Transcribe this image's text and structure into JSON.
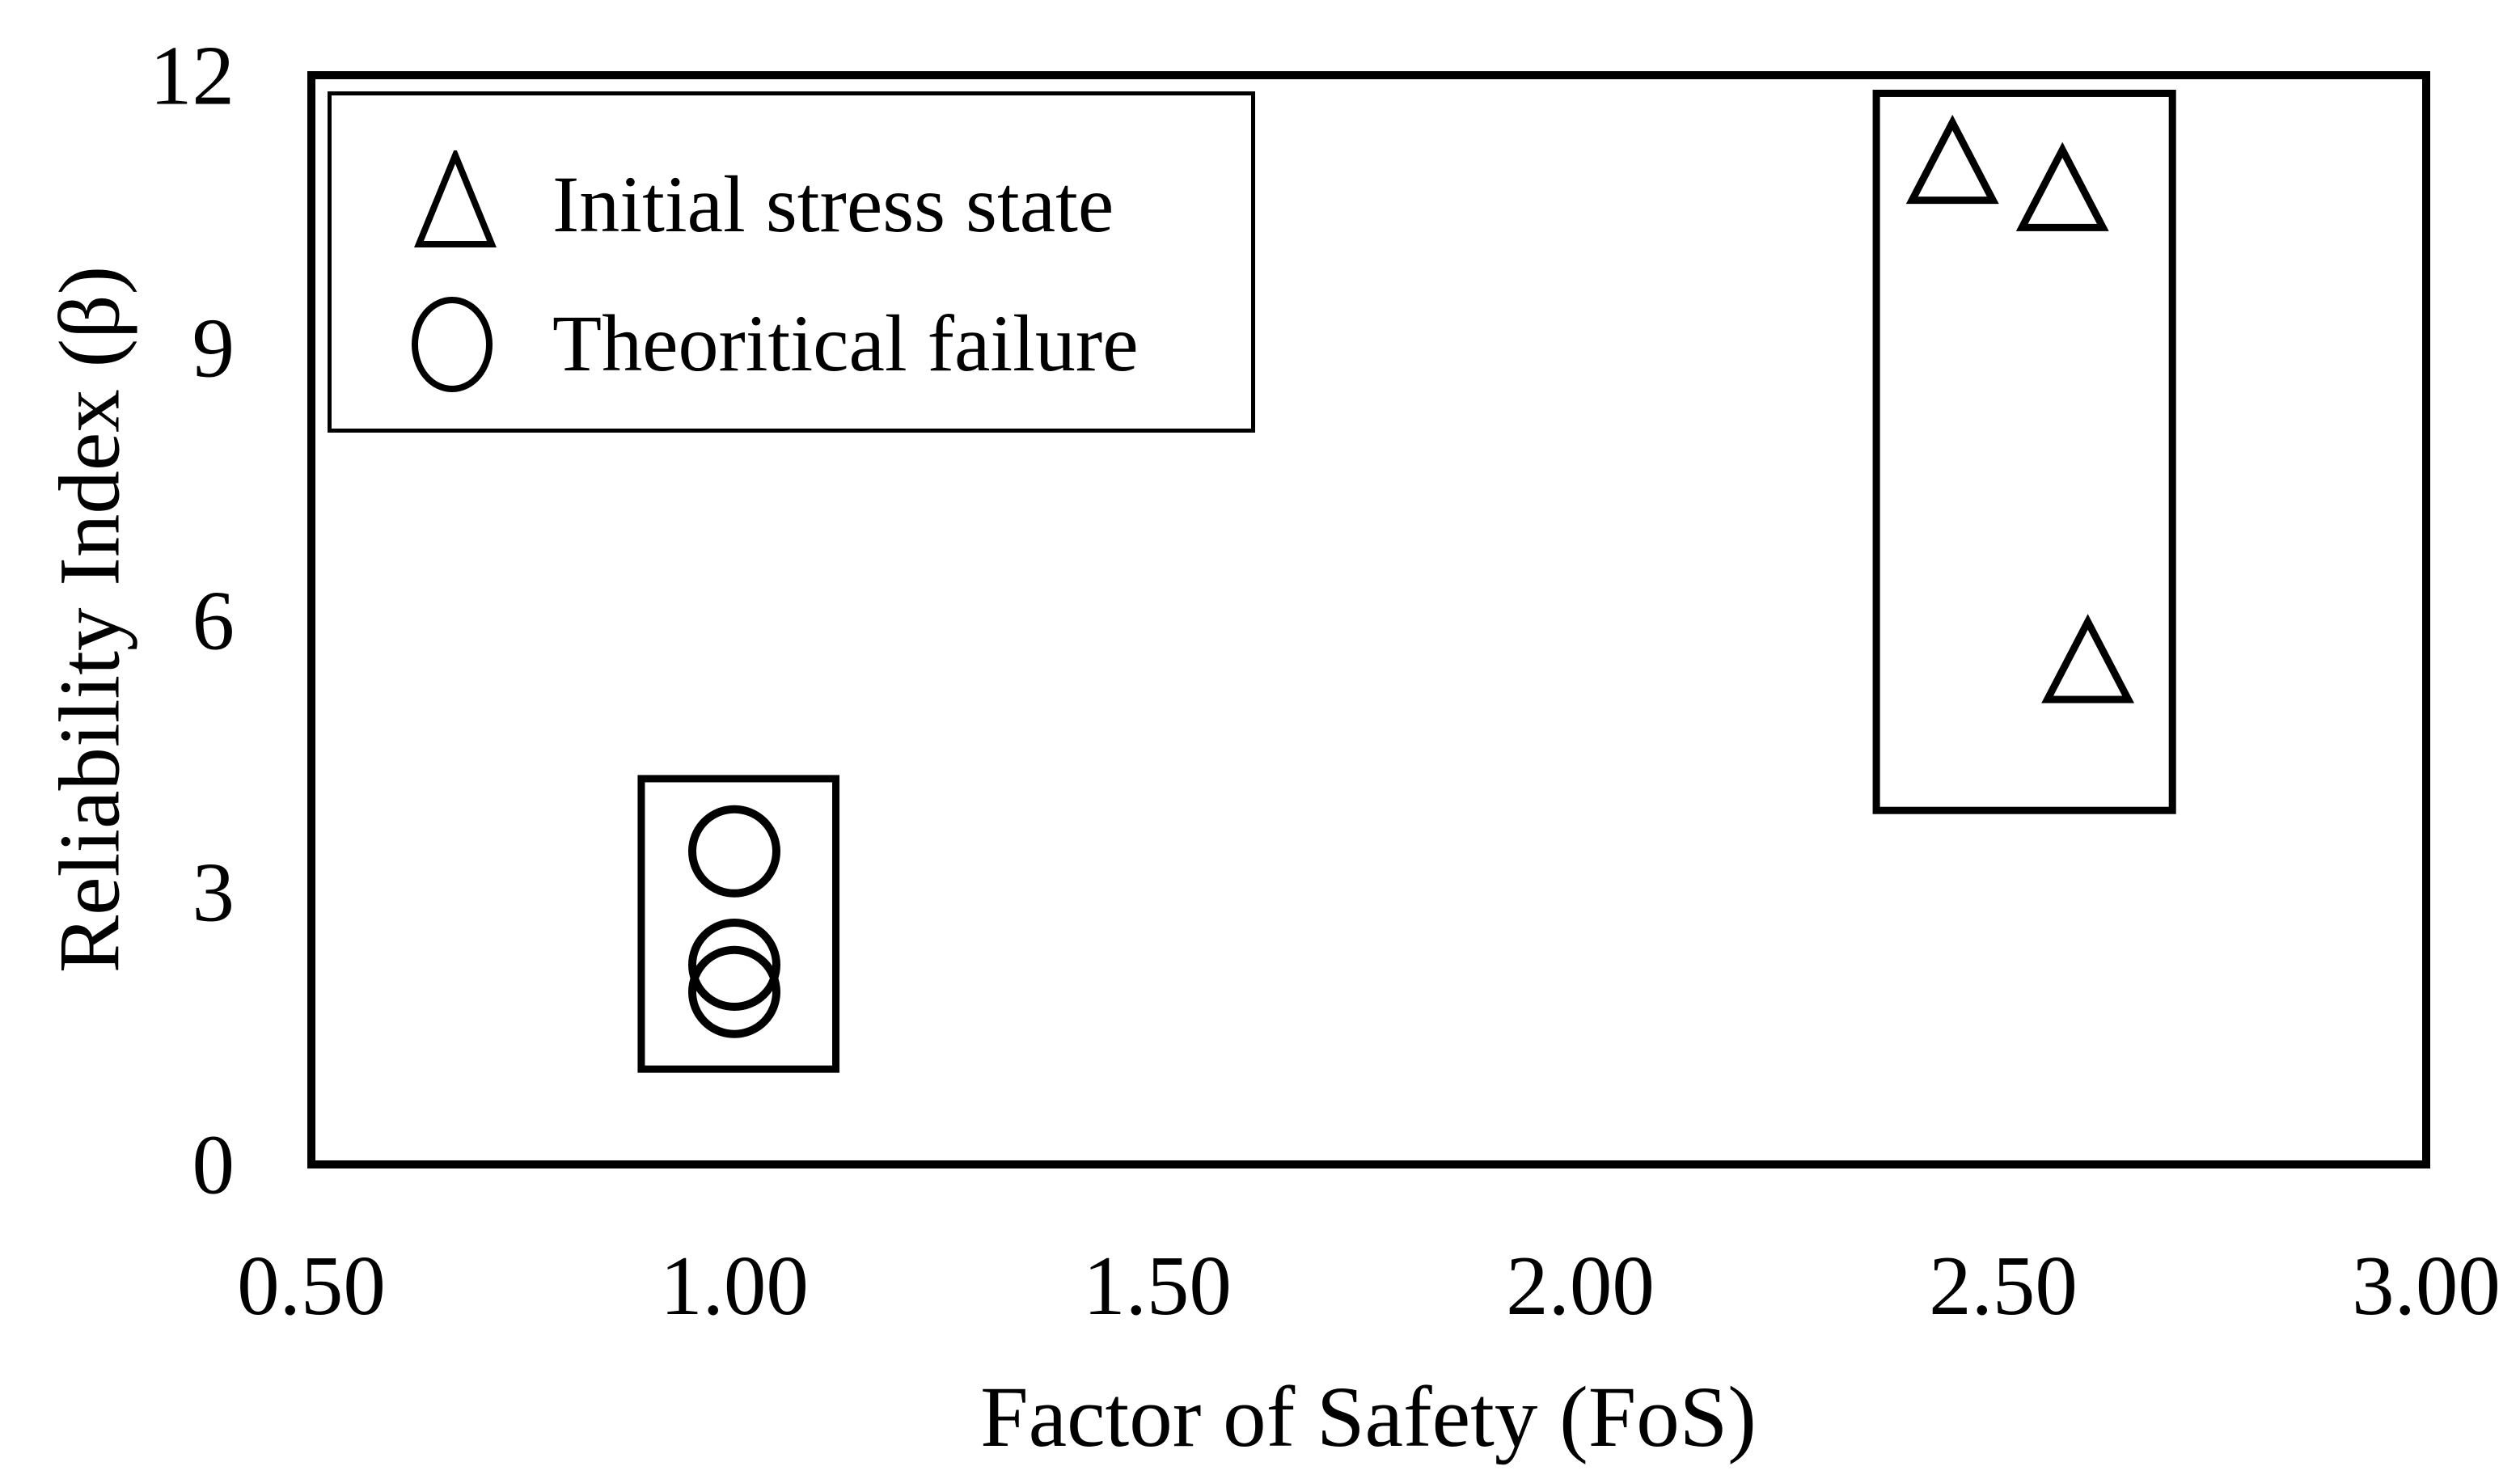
{
  "figure": {
    "background_color": "#ffffff",
    "ink_color": "#000000"
  },
  "chart_data": {
    "type": "scatter",
    "title": "",
    "xlabel": "Factor of Safety (FoS)",
    "ylabel": "Reliability Index (β)",
    "xlim": [
      0.5,
      3.0
    ],
    "ylim": [
      0,
      12
    ],
    "x_ticks": [
      {
        "value": 0.5,
        "label": "0.50"
      },
      {
        "value": 1.0,
        "label": "1.00"
      },
      {
        "value": 1.5,
        "label": "1.50"
      },
      {
        "value": 2.0,
        "label": "2.00"
      },
      {
        "value": 2.5,
        "label": "2.50"
      },
      {
        "value": 3.0,
        "label": "3.00"
      }
    ],
    "y_ticks": [
      {
        "value": 0,
        "label": "0"
      },
      {
        "value": 3,
        "label": "3"
      },
      {
        "value": 6,
        "label": "6"
      },
      {
        "value": 9,
        "label": "9"
      },
      {
        "value": 12,
        "label": "12"
      }
    ],
    "grid": false,
    "legend_position": "top-left-inside",
    "series": [
      {
        "name": "Initial stress state",
        "marker": "triangle",
        "fill": "none",
        "stroke": "#000000",
        "points": [
          {
            "x": 2.44,
            "y": 11.05
          },
          {
            "x": 2.57,
            "y": 10.75
          },
          {
            "x": 2.6,
            "y": 5.55
          }
        ]
      },
      {
        "name": "Theoritical failure",
        "marker": "circle",
        "fill": "none",
        "stroke": "#000000",
        "points": [
          {
            "x": 1.0,
            "y": 3.45
          },
          {
            "x": 1.0,
            "y": 2.2
          },
          {
            "x": 1.0,
            "y": 1.9
          }
        ]
      }
    ],
    "annotation_boxes": [
      {
        "x0": 0.89,
        "y0": 1.05,
        "x1": 1.12,
        "y1": 4.25
      },
      {
        "x0": 2.35,
        "y0": 3.9,
        "x1": 2.7,
        "y1": 11.8
      }
    ]
  }
}
